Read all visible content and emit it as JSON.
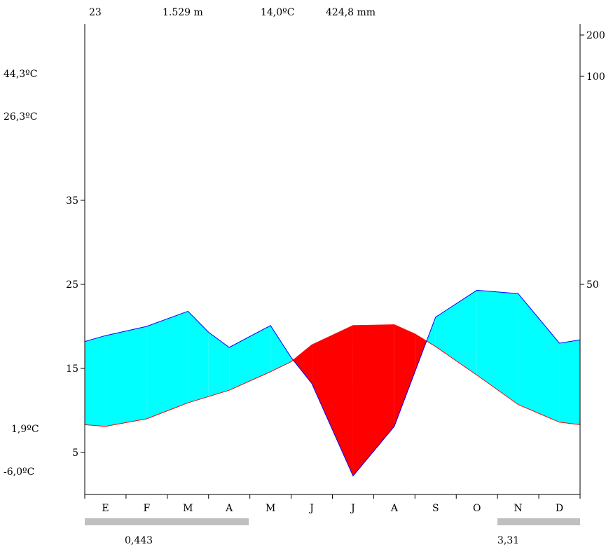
{
  "header": {
    "years": "23",
    "altitude": "1.529 m",
    "mean_temp": "14,0ºC",
    "annual_precip": "424,8 mm"
  },
  "left_labels": {
    "abs_max": "44,3ºC",
    "mean_max_warmest": "26,3ºC",
    "mean_min_coldest": "1,9ºC",
    "abs_min": "-6,0ºC"
  },
  "frost": {
    "left_value": "0,443",
    "right_value": "3,31"
  },
  "colors": {
    "humid": "#00ffff",
    "arid": "#ff0000",
    "precip_line": "#0000ff",
    "temp_line": "#ff0000",
    "frost_bar": "#c0c0c0",
    "axis": "#000000"
  },
  "chart_data": {
    "type": "area",
    "categories": [
      "E",
      "F",
      "M",
      "A",
      "M",
      "J",
      "J",
      "A",
      "S",
      "O",
      "N",
      "D"
    ],
    "y_left_ticks": [
      "5",
      "15",
      "25",
      "35"
    ],
    "y_right_ticks": [
      "50",
      "100",
      "200"
    ],
    "y_left_range": [
      0,
      55
    ],
    "y_right_scale": "ombrothermic (P = 2T up to 100 mm, compressed above)",
    "series": [
      {
        "key": "temperature",
        "x": [
          0,
          0.5,
          1.5,
          2.5,
          3.5,
          4.5,
          5,
          5.5,
          6.5,
          7.5,
          8,
          8.5,
          9.5,
          10.5,
          11.5,
          12
        ],
        "values": [
          8.3,
          8.1,
          9.0,
          10.9,
          12.4,
          14.6,
          15.8,
          17.8,
          20.1,
          20.2,
          19.1,
          17.6,
          14.2,
          10.7,
          8.6,
          8.3
        ]
      },
      {
        "key": "precipitation",
        "x": [
          0,
          0.5,
          1.5,
          2.5,
          3,
          3.5,
          4.5,
          5,
          5.5,
          6.5,
          7.5,
          8.5,
          9.5,
          10.5,
          11.5,
          12
        ],
        "values": [
          36.4,
          37.8,
          40.0,
          43.6,
          38.6,
          35.0,
          40.2,
          32.6,
          26.4,
          4.4,
          16.2,
          42.2,
          48.6,
          47.8,
          36.0,
          36.8
        ]
      }
    ],
    "frost_bars": [
      [
        0,
        4
      ],
      [
        10,
        12
      ]
    ]
  }
}
